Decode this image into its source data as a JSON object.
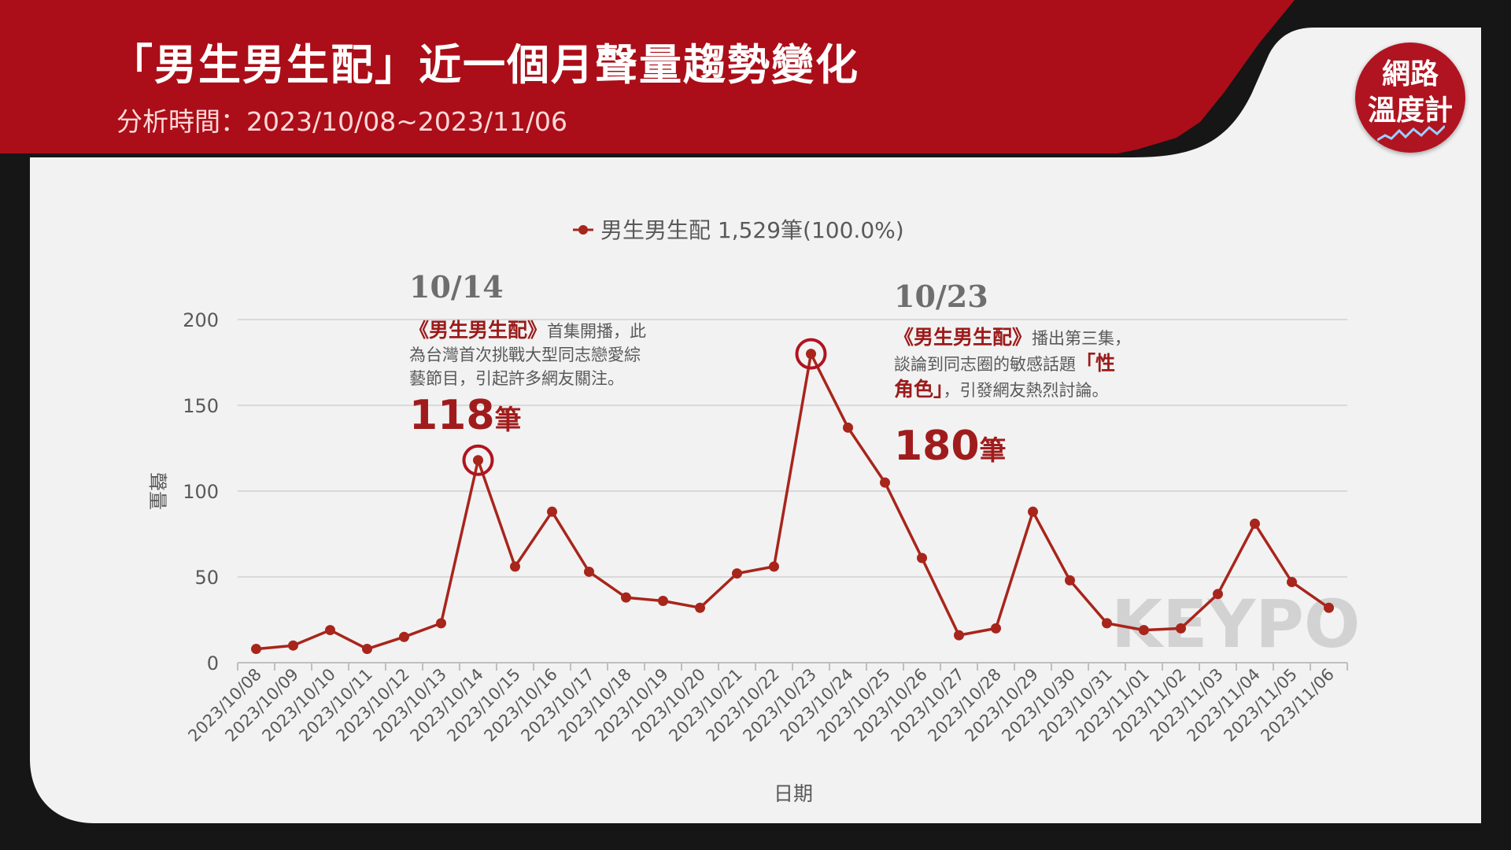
{
  "header": {
    "title": "「男生男生配」近一個月聲量趨勢變化",
    "subtitle": "分析時間：2023/10/08~2023/11/06"
  },
  "logo": {
    "line1": "網路",
    "line2": "溫度計"
  },
  "watermark": "KEYPO",
  "colors": {
    "brand_red": "#b01420",
    "series": "#a8251c",
    "panel": "#f2f2f2"
  },
  "annotations": [
    {
      "date": "10/14",
      "lines": [
        [
          {
            "t": "《男生男生配》",
            "em": true
          },
          {
            "t": "首集開播，此",
            "em": false
          }
        ],
        [
          {
            "t": "為台灣首次挑戰大型同志戀愛綜",
            "em": false
          }
        ],
        [
          {
            "t": "藝節目，引起許多網友關注。",
            "em": false
          }
        ]
      ],
      "count_num": "118",
      "count_unit": "筆"
    },
    {
      "date": "10/23",
      "lines": [
        [
          {
            "t": "《男生男生配》",
            "em": true
          },
          {
            "t": "播出第三集，",
            "em": false
          }
        ],
        [
          {
            "t": "談論到同志圈的敏感話題",
            "em": false
          },
          {
            "t": "「性",
            "em": true
          }
        ],
        [
          {
            "t": "角色」",
            "em": true
          },
          {
            "t": "，引發網友熱烈討論。",
            "em": false
          }
        ]
      ],
      "count_num": "180",
      "count_unit": "筆"
    }
  ],
  "chart_data": {
    "type": "line",
    "legend": "男生男生配 1,529筆(100.0%)",
    "legend_position": "top-center",
    "xlabel": "日期",
    "ylabel": "聲量",
    "ylim": [
      0,
      200
    ],
    "yticks": [
      0,
      50,
      100,
      150,
      200
    ],
    "grid": true,
    "categories": [
      "2023/10/08",
      "2023/10/09",
      "2023/10/10",
      "2023/10/11",
      "2023/10/12",
      "2023/10/13",
      "2023/10/14",
      "2023/10/15",
      "2023/10/16",
      "2023/10/17",
      "2023/10/18",
      "2023/10/19",
      "2023/10/20",
      "2023/10/21",
      "2023/10/22",
      "2023/10/23",
      "2023/10/24",
      "2023/10/25",
      "2023/10/26",
      "2023/10/27",
      "2023/10/28",
      "2023/10/29",
      "2023/10/30",
      "2023/10/31",
      "2023/11/01",
      "2023/11/02",
      "2023/11/03",
      "2023/11/04",
      "2023/11/05",
      "2023/11/06"
    ],
    "series": [
      {
        "name": "男生男生配",
        "values": [
          8,
          10,
          19,
          8,
          15,
          23,
          118,
          56,
          88,
          53,
          38,
          36,
          32,
          52,
          56,
          180,
          137,
          105,
          61,
          16,
          20,
          88,
          48,
          23,
          19,
          20,
          40,
          81,
          47,
          32
        ]
      }
    ],
    "highlights": [
      "2023/10/14",
      "2023/10/23"
    ]
  }
}
